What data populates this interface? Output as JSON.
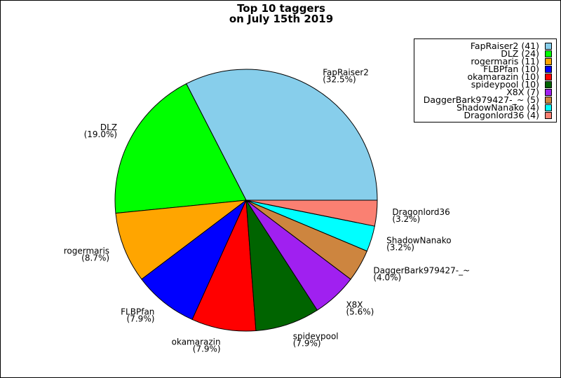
{
  "chart_data": {
    "type": "pie",
    "title": "Top 10 taggers",
    "subtitle": "on July 15th 2019",
    "slices": [
      {
        "name": "FapRaiser2",
        "value": 41,
        "percent": "32.5%",
        "color": "#87ceeb"
      },
      {
        "name": "DLZ",
        "value": 24,
        "percent": "19.0%",
        "color": "#00ff00"
      },
      {
        "name": "rogermaris",
        "value": 11,
        "percent": "8.7%",
        "color": "#ffa500"
      },
      {
        "name": "FLBPfan",
        "value": 10,
        "percent": "7.9%",
        "color": "#0000ff"
      },
      {
        "name": "okamarazin",
        "value": 10,
        "percent": "7.9%",
        "color": "#ff0000"
      },
      {
        "name": "spideypool",
        "value": 10,
        "percent": "7.9%",
        "color": "#006400"
      },
      {
        "name": "X8X",
        "value": 7,
        "percent": "5.6%",
        "color": "#a020f0"
      },
      {
        "name": "DaggerBark979427-_~",
        "value": 5,
        "percent": "4.0%",
        "color": "#cd853f"
      },
      {
        "name": "ShadowNanako",
        "value": 4,
        "percent": "3.2%",
        "color": "#00ffff"
      },
      {
        "name": "Dragonlord36",
        "value": 4,
        "percent": "3.2%",
        "color": "#fa8072"
      }
    ],
    "legend": {
      "placement": "top-right",
      "entries": [
        "FapRaiser2 (41)",
        "DLZ (24)",
        "rogermaris (11)",
        "FLBPfan (10)",
        "okamarazin (10)",
        "spideypool (10)",
        "X8X (7)",
        "DaggerBark979427-_~ (5)",
        "ShadowNanako (4)",
        "Dragonlord36 (4)"
      ]
    },
    "start_angle": "east, counterclockwise"
  }
}
